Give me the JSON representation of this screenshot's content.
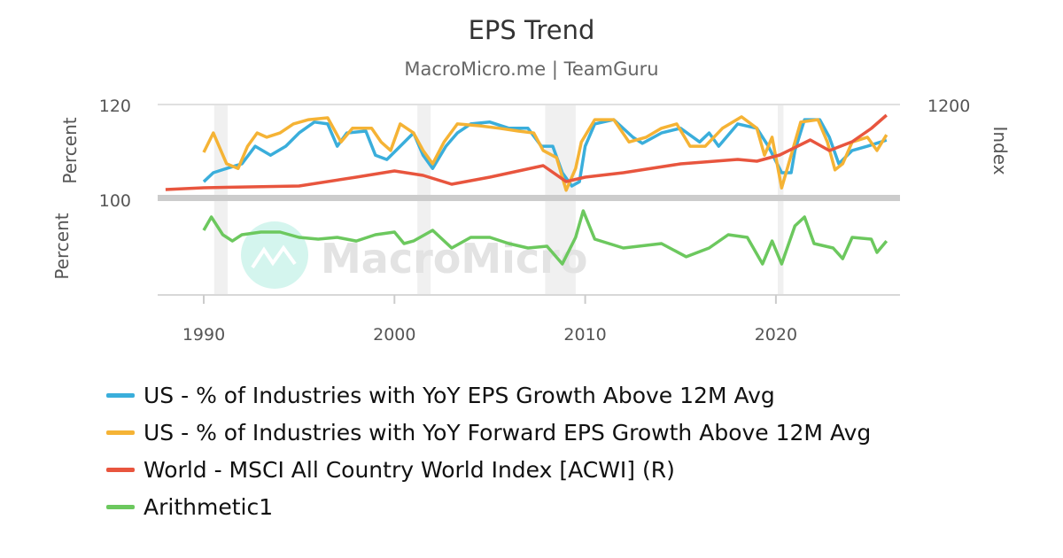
{
  "chart_data": {
    "type": "line",
    "title": "EPS Trend",
    "subtitle": "MacroMicro.me | TeamGuru",
    "watermark": "MacroMicro",
    "x_ticks": [
      1990,
      2000,
      2010,
      2020
    ],
    "xlim": [
      1986.6,
      2026.3
    ],
    "top_panel": {
      "ylabel_left": "Percent",
      "ylabel_right": "Index",
      "ylim_left": [
        100,
        120
      ],
      "ylim_right": [
        0,
        1200
      ],
      "left_tick_labels": [
        "120",
        "100"
      ],
      "right_tick_labels": [
        "1200"
      ]
    },
    "bottom_panel": {
      "ylabel_left": "Percent",
      "ylim": [
        0,
        100
      ]
    },
    "recessions": [
      [
        1990.55,
        1991.25
      ],
      [
        2001.2,
        2001.9
      ],
      [
        2007.9,
        2009.5
      ],
      [
        2020.1,
        2020.4
      ]
    ],
    "grid": "horizontal",
    "legend_placement": "bottom",
    "series": [
      {
        "name": "US - % of Industries with YoY EPS Growth Above 12M Avg",
        "color": "#3aaedb",
        "panel": "top",
        "axis": "left",
        "x": [
          1990,
          1990.5,
          1991.2,
          1992,
          1992.7,
          1993.5,
          1994.3,
          1995,
          1995.8,
          1996.5,
          1997,
          1997.5,
          1998.5,
          1999,
          1999.6,
          2000.3,
          2001,
          2001.5,
          2002,
          2002.7,
          2003.3,
          2004,
          2005,
          2006,
          2007,
          2007.7,
          2008.3,
          2008.8,
          2009.3,
          2009.7,
          2010,
          2010.5,
          2011.5,
          2012.5,
          2013,
          2014,
          2015,
          2016,
          2016.5,
          2017,
          2018,
          2019,
          2019.6,
          2020.3,
          2020.8,
          2021,
          2021.5,
          2022.3,
          2022.8,
          2023.3,
          2024,
          2024.8,
          2025.5,
          2025.8
        ],
        "y": [
          103.7,
          105.6,
          106.5,
          107.5,
          111.2,
          109.3,
          111.2,
          114,
          116.3,
          115.9,
          111.2,
          114,
          114.4,
          109.3,
          108.4,
          111.2,
          114,
          109.3,
          106.5,
          111.2,
          114,
          115.9,
          116.3,
          115,
          115,
          111.2,
          111.2,
          105.6,
          102.8,
          103.7,
          111.2,
          115.9,
          116.8,
          113.1,
          111.8,
          114,
          115,
          112.1,
          114,
          111.2,
          115.9,
          115,
          111.2,
          105.6,
          105.6,
          110.3,
          116.8,
          116.8,
          113.1,
          107.5,
          110.3,
          111.2,
          112.1,
          112.5
        ]
      },
      {
        "name": "US - % of Industries with YoY Forward EPS Growth Above 12M Avg",
        "color": "#f5b335",
        "panel": "top",
        "axis": "left",
        "x": [
          1990,
          1990.5,
          1991.2,
          1991.8,
          1992.3,
          1992.8,
          1993.3,
          1994,
          1994.7,
          1995.5,
          1996.5,
          1997.2,
          1997.8,
          1998.8,
          1999.3,
          1999.8,
          2000.3,
          2001,
          2001.5,
          2002,
          2002.6,
          2003.3,
          2004.5,
          2005.5,
          2006.5,
          2007.3,
          2007.8,
          2008.5,
          2009,
          2009.5,
          2009.8,
          2010.5,
          2011.5,
          2012.3,
          2013.2,
          2014,
          2014.8,
          2015.5,
          2016.3,
          2017.2,
          2018.2,
          2019,
          2019.4,
          2019.8,
          2020.3,
          2020.8,
          2021.3,
          2022.2,
          2022.7,
          2023.1,
          2023.5,
          2024,
          2024.8,
          2025.3,
          2025.8
        ],
        "y": [
          109.9,
          114,
          107.5,
          106.5,
          111.2,
          114,
          113.1,
          114,
          115.9,
          116.8,
          117.2,
          112.1,
          115,
          115,
          112.1,
          110.3,
          115.9,
          114,
          110.3,
          107.5,
          112.1,
          115.9,
          115.5,
          115,
          114.4,
          114,
          110.3,
          108.8,
          101.9,
          106.5,
          112.1,
          116.8,
          116.8,
          112.1,
          113.1,
          115,
          115.9,
          111.2,
          111.2,
          115,
          117.4,
          115,
          109.3,
          113.1,
          102.4,
          109.3,
          116.3,
          116.8,
          112.1,
          106.2,
          107.5,
          112.1,
          113.1,
          110.3,
          113.6
        ]
      },
      {
        "name": "World - MSCI All Country World Index [ACWI] (R)",
        "color": "#e8553e",
        "panel": "top",
        "axis": "right",
        "x": [
          1988,
          1990,
          1995,
          1998,
          2000,
          2001.5,
          2003,
          2005,
          2007.8,
          2009,
          2010,
          2012,
          2015,
          2018,
          2019,
          2020.2,
          2021.8,
          2022.8,
          2024,
          2025,
          2025.8
        ],
        "y": [
          123,
          146,
          168,
          280,
          359,
          303,
          191,
          280,
          426,
          224,
          280,
          336,
          449,
          505,
          482,
          561,
          751,
          617,
          729,
          897,
          1065
        ]
      },
      {
        "name": "Arithmetic1",
        "color": "#6cc85e",
        "panel": "bottom",
        "axis": "left",
        "x": [
          1990,
          1990.4,
          1991,
          1991.5,
          1992,
          1993,
          1994,
          1995,
          1996,
          1997,
          1998,
          1999,
          2000,
          2000.5,
          2001,
          2002,
          2003,
          2004,
          2005,
          2006,
          2007,
          2008,
          2008.8,
          2009.5,
          2009.9,
          2010.5,
          2012,
          2014,
          2015.3,
          2016.5,
          2017.5,
          2018.5,
          2019.3,
          2019.8,
          2020.3,
          2021,
          2021.5,
          2022,
          2023,
          2023.5,
          2024,
          2025,
          2025.3,
          2025.8
        ],
        "y": [
          69.5,
          83.8,
          64.8,
          58,
          64.8,
          67.6,
          67.6,
          61.9,
          60,
          61.9,
          58,
          64.8,
          67.6,
          55.2,
          58,
          69.5,
          50.5,
          61.9,
          61.9,
          55.2,
          50.5,
          52.4,
          33.3,
          61.9,
          90.5,
          60,
          50.5,
          55.2,
          41,
          50.5,
          64.8,
          61.9,
          33.3,
          58,
          33.3,
          74.3,
          83.8,
          55.2,
          50.5,
          39,
          61.9,
          60,
          45.7,
          58
        ]
      }
    ]
  }
}
